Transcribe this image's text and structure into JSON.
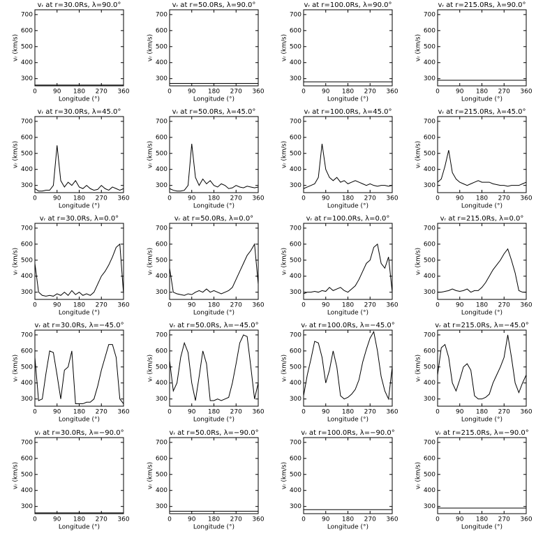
{
  "chart_data": [
    {
      "type": "line",
      "title": "vᵣ at r=30.0Rs, λ=90.0°",
      "xlabel": "Longitude (°)",
      "ylabel": "vᵣ (km/s)",
      "x": [
        0,
        360
      ],
      "values": [
        260,
        260
      ],
      "xlim": [
        0,
        360
      ],
      "ylim": [
        255,
        730
      ],
      "xticks": [
        0,
        90,
        180,
        270,
        360
      ],
      "yticks": [
        300,
        400,
        500,
        600,
        700
      ],
      "color": "#000000"
    },
    {
      "type": "line",
      "title": "vᵣ at r=50.0Rs, λ=90.0°",
      "xlabel": "Longitude (°)",
      "ylabel": "vᵣ (km/s)",
      "x": [
        0,
        360
      ],
      "values": [
        270,
        270
      ],
      "xlim": [
        0,
        360
      ],
      "ylim": [
        255,
        730
      ],
      "xticks": [
        0,
        90,
        180,
        270,
        360
      ],
      "yticks": [
        300,
        400,
        500,
        600,
        700
      ],
      "color": "#000000"
    },
    {
      "type": "line",
      "title": "vᵣ at r=100.0Rs, λ=90.0°",
      "xlabel": "Longitude (°)",
      "ylabel": "vᵣ (km/s)",
      "x": [
        0,
        360
      ],
      "values": [
        280,
        280
      ],
      "xlim": [
        0,
        360
      ],
      "ylim": [
        255,
        730
      ],
      "xticks": [
        0,
        90,
        180,
        270,
        360
      ],
      "yticks": [
        300,
        400,
        500,
        600,
        700
      ],
      "color": "#000000"
    },
    {
      "type": "line",
      "title": "vᵣ at r=215.0Rs, λ=90.0°",
      "xlabel": "Longitude (°)",
      "ylabel": "vᵣ (km/s)",
      "x": [
        0,
        360
      ],
      "values": [
        290,
        290
      ],
      "xlim": [
        0,
        360
      ],
      "ylim": [
        255,
        730
      ],
      "xticks": [
        0,
        90,
        180,
        270,
        360
      ],
      "yticks": [
        300,
        400,
        500,
        600,
        700
      ],
      "color": "#000000"
    },
    {
      "type": "line",
      "title": "vᵣ at r=30.0Rs, λ=45.0°",
      "xlabel": "Longitude (°)",
      "ylabel": "vᵣ (km/s)",
      "x": [
        0,
        15,
        30,
        45,
        60,
        75,
        90,
        105,
        120,
        135,
        150,
        165,
        180,
        195,
        210,
        225,
        240,
        255,
        270,
        285,
        300,
        315,
        330,
        345,
        360
      ],
      "values": [
        280,
        265,
        265,
        270,
        270,
        300,
        550,
        330,
        290,
        320,
        300,
        330,
        290,
        280,
        300,
        280,
        270,
        275,
        300,
        280,
        270,
        290,
        280,
        270,
        280
      ],
      "xlim": [
        0,
        360
      ],
      "ylim": [
        255,
        730
      ],
      "xticks": [
        0,
        90,
        180,
        270,
        360
      ],
      "yticks": [
        300,
        400,
        500,
        600,
        700
      ],
      "color": "#000000"
    },
    {
      "type": "line",
      "title": "vᵣ at r=50.0Rs, λ=45.0°",
      "xlabel": "Longitude (°)",
      "ylabel": "vᵣ (km/s)",
      "x": [
        0,
        15,
        30,
        45,
        60,
        75,
        90,
        105,
        120,
        135,
        150,
        165,
        180,
        195,
        210,
        225,
        240,
        255,
        270,
        285,
        300,
        315,
        330,
        345,
        360
      ],
      "values": [
        280,
        270,
        265,
        265,
        270,
        300,
        560,
        350,
        300,
        340,
        310,
        330,
        300,
        290,
        310,
        300,
        280,
        285,
        300,
        290,
        285,
        295,
        290,
        285,
        290
      ],
      "xlim": [
        0,
        360
      ],
      "ylim": [
        255,
        730
      ],
      "xticks": [
        0,
        90,
        180,
        270,
        360
      ],
      "yticks": [
        300,
        400,
        500,
        600,
        700
      ],
      "color": "#000000"
    },
    {
      "type": "line",
      "title": "vᵣ at r=100.0Rs, λ=45.0°",
      "xlabel": "Longitude (°)",
      "ylabel": "vᵣ (km/s)",
      "x": [
        0,
        15,
        30,
        45,
        60,
        75,
        90,
        105,
        120,
        135,
        150,
        165,
        180,
        195,
        210,
        225,
        240,
        255,
        270,
        285,
        300,
        315,
        330,
        345,
        360
      ],
      "values": [
        280,
        290,
        300,
        310,
        350,
        560,
        400,
        350,
        330,
        350,
        320,
        330,
        310,
        320,
        330,
        320,
        310,
        300,
        310,
        300,
        295,
        300,
        300,
        295,
        300
      ],
      "xlim": [
        0,
        360
      ],
      "ylim": [
        255,
        730
      ],
      "xticks": [
        0,
        90,
        180,
        270,
        360
      ],
      "yticks": [
        300,
        400,
        500,
        600,
        700
      ],
      "color": "#000000"
    },
    {
      "type": "line",
      "title": "vᵣ at r=215.0Rs, λ=45.0°",
      "xlabel": "Longitude (°)",
      "ylabel": "vᵣ (km/s)",
      "x": [
        0,
        15,
        30,
        45,
        60,
        75,
        90,
        105,
        120,
        135,
        150,
        165,
        180,
        195,
        210,
        225,
        240,
        255,
        270,
        285,
        300,
        315,
        330,
        345,
        360
      ],
      "values": [
        320,
        340,
        420,
        520,
        380,
        340,
        320,
        310,
        300,
        310,
        320,
        330,
        320,
        320,
        320,
        310,
        305,
        300,
        300,
        295,
        300,
        300,
        300,
        310,
        320
      ],
      "xlim": [
        0,
        360
      ],
      "ylim": [
        255,
        730
      ],
      "xticks": [
        0,
        90,
        180,
        270,
        360
      ],
      "yticks": [
        300,
        400,
        500,
        600,
        700
      ],
      "color": "#000000"
    },
    {
      "type": "line",
      "title": "vᵣ at r=30.0Rs, λ=0.0°",
      "xlabel": "Longitude (°)",
      "ylabel": "vᵣ (km/s)",
      "x": [
        0,
        15,
        30,
        45,
        60,
        75,
        90,
        105,
        120,
        135,
        150,
        165,
        180,
        195,
        210,
        225,
        240,
        255,
        270,
        285,
        300,
        315,
        330,
        345,
        360
      ],
      "values": [
        480,
        300,
        280,
        275,
        280,
        275,
        290,
        280,
        300,
        280,
        310,
        285,
        300,
        280,
        290,
        280,
        300,
        350,
        400,
        430,
        470,
        520,
        580,
        600,
        290
      ],
      "xlim": [
        0,
        360
      ],
      "ylim": [
        255,
        730
      ],
      "xticks": [
        0,
        90,
        180,
        270,
        360
      ],
      "yticks": [
        300,
        400,
        500,
        600,
        700
      ],
      "color": "#000000"
    },
    {
      "type": "line",
      "title": "vᵣ at r=50.0Rs, λ=0.0°",
      "xlabel": "Longitude (°)",
      "ylabel": "vᵣ (km/s)",
      "x": [
        0,
        15,
        30,
        45,
        60,
        75,
        90,
        105,
        120,
        135,
        150,
        165,
        180,
        195,
        210,
        225,
        240,
        255,
        270,
        285,
        300,
        315,
        330,
        345,
        360
      ],
      "values": [
        450,
        300,
        290,
        285,
        280,
        290,
        285,
        300,
        310,
        300,
        320,
        300,
        310,
        300,
        290,
        300,
        310,
        330,
        380,
        430,
        480,
        530,
        560,
        600,
        350
      ],
      "xlim": [
        0,
        360
      ],
      "ylim": [
        255,
        730
      ],
      "xticks": [
        0,
        90,
        180,
        270,
        360
      ],
      "yticks": [
        300,
        400,
        500,
        600,
        700
      ],
      "color": "#000000"
    },
    {
      "type": "line",
      "title": "vᵣ at r=100.0Rs, λ=0.0°",
      "xlabel": "Longitude (°)",
      "ylabel": "vᵣ (km/s)",
      "x": [
        0,
        15,
        30,
        45,
        60,
        75,
        90,
        105,
        120,
        135,
        150,
        165,
        180,
        195,
        210,
        225,
        240,
        255,
        270,
        285,
        300,
        315,
        330,
        345,
        360
      ],
      "values": [
        290,
        300,
        300,
        305,
        300,
        310,
        305,
        330,
        310,
        320,
        330,
        310,
        300,
        320,
        340,
        380,
        430,
        480,
        500,
        580,
        600,
        480,
        450,
        520,
        300
      ],
      "xlim": [
        0,
        360
      ],
      "ylim": [
        255,
        730
      ],
      "xticks": [
        0,
        90,
        180,
        270,
        360
      ],
      "yticks": [
        300,
        400,
        500,
        600,
        700
      ],
      "color": "#000000"
    },
    {
      "type": "line",
      "title": "vᵣ at r=215.0Rs, λ=0.0°",
      "xlabel": "Longitude (°)",
      "ylabel": "vᵣ (km/s)",
      "x": [
        0,
        15,
        30,
        45,
        60,
        75,
        90,
        105,
        120,
        135,
        150,
        165,
        180,
        195,
        210,
        225,
        240,
        255,
        270,
        285,
        300,
        315,
        330,
        345,
        360
      ],
      "values": [
        300,
        300,
        305,
        310,
        320,
        310,
        305,
        310,
        320,
        300,
        310,
        310,
        330,
        360,
        400,
        440,
        470,
        500,
        540,
        570,
        500,
        420,
        310,
        300,
        300
      ],
      "xlim": [
        0,
        360
      ],
      "ylim": [
        255,
        730
      ],
      "xticks": [
        0,
        90,
        180,
        270,
        360
      ],
      "yticks": [
        300,
        400,
        500,
        600,
        700
      ],
      "color": "#000000"
    },
    {
      "type": "line",
      "title": "vᵣ at r=30.0Rs, λ=−45.0°",
      "xlabel": "Longitude (°)",
      "ylabel": "vᵣ (km/s)",
      "x": [
        0,
        15,
        30,
        45,
        60,
        75,
        90,
        105,
        120,
        135,
        150,
        165,
        180,
        195,
        210,
        225,
        240,
        255,
        270,
        285,
        300,
        315,
        330,
        345,
        360
      ],
      "values": [
        560,
        290,
        300,
        460,
        600,
        590,
        450,
        300,
        480,
        500,
        600,
        270,
        270,
        270,
        280,
        280,
        300,
        380,
        480,
        560,
        640,
        640,
        560,
        300,
        270
      ],
      "xlim": [
        0,
        360
      ],
      "ylim": [
        255,
        730
      ],
      "xticks": [
        0,
        90,
        180,
        270,
        360
      ],
      "yticks": [
        300,
        400,
        500,
        600,
        700
      ],
      "color": "#000000"
    },
    {
      "type": "line",
      "title": "vᵣ at r=50.0Rs, λ=−45.0°",
      "xlabel": "Longitude (°)",
      "ylabel": "vᵣ (km/s)",
      "x": [
        0,
        15,
        30,
        45,
        60,
        75,
        90,
        105,
        120,
        135,
        150,
        165,
        180,
        195,
        210,
        225,
        240,
        255,
        270,
        285,
        300,
        315,
        330,
        345,
        360
      ],
      "values": [
        540,
        350,
        400,
        560,
        650,
        590,
        400,
        290,
        440,
        600,
        520,
        290,
        290,
        300,
        290,
        300,
        310,
        400,
        520,
        650,
        700,
        690,
        500,
        300,
        400
      ],
      "xlim": [
        0,
        360
      ],
      "ylim": [
        255,
        730
      ],
      "xticks": [
        0,
        90,
        180,
        270,
        360
      ],
      "yticks": [
        300,
        400,
        500,
        600,
        700
      ],
      "color": "#000000"
    },
    {
      "type": "line",
      "title": "vᵣ at r=100.0Rs, λ=−45.0°",
      "xlabel": "Longitude (°)",
      "ylabel": "vᵣ (km/s)",
      "x": [
        0,
        15,
        30,
        45,
        60,
        75,
        90,
        105,
        120,
        135,
        150,
        165,
        180,
        195,
        210,
        225,
        240,
        255,
        270,
        285,
        300,
        315,
        330,
        345,
        360
      ],
      "values": [
        320,
        450,
        550,
        660,
        650,
        560,
        400,
        480,
        600,
        500,
        320,
        300,
        310,
        330,
        360,
        420,
        530,
        610,
        680,
        720,
        600,
        440,
        350,
        300,
        500
      ],
      "xlim": [
        0,
        360
      ],
      "ylim": [
        255,
        730
      ],
      "xticks": [
        0,
        90,
        180,
        270,
        360
      ],
      "yticks": [
        300,
        400,
        500,
        600,
        700
      ],
      "color": "#000000"
    },
    {
      "type": "line",
      "title": "vᵣ at r=215.0Rs, λ=−45.0°",
      "xlabel": "Longitude (°)",
      "ylabel": "vᵣ (km/s)",
      "x": [
        0,
        15,
        30,
        45,
        60,
        75,
        90,
        105,
        120,
        135,
        150,
        165,
        180,
        195,
        210,
        225,
        240,
        255,
        270,
        285,
        300,
        315,
        330,
        345,
        360
      ],
      "values": [
        450,
        620,
        640,
        560,
        400,
        350,
        420,
        500,
        520,
        480,
        320,
        300,
        300,
        310,
        330,
        400,
        450,
        500,
        560,
        700,
        560,
        400,
        340,
        400,
        450
      ],
      "xlim": [
        0,
        360
      ],
      "ylim": [
        255,
        730
      ],
      "xticks": [
        0,
        90,
        180,
        270,
        360
      ],
      "yticks": [
        300,
        400,
        500,
        600,
        700
      ],
      "color": "#000000"
    },
    {
      "type": "line",
      "title": "vᵣ at r=30.0Rs, λ=−90.0°",
      "xlabel": "Longitude (°)",
      "ylabel": "vᵣ (km/s)",
      "x": [
        0,
        360
      ],
      "values": [
        260,
        260
      ],
      "xlim": [
        0,
        360
      ],
      "ylim": [
        255,
        730
      ],
      "xticks": [
        0,
        90,
        180,
        270,
        360
      ],
      "yticks": [
        300,
        400,
        500,
        600,
        700
      ],
      "color": "#000000"
    },
    {
      "type": "line",
      "title": "vᵣ at r=50.0Rs, λ=−90.0°",
      "xlabel": "Longitude (°)",
      "ylabel": "vᵣ (km/s)",
      "x": [
        0,
        360
      ],
      "values": [
        270,
        270
      ],
      "xlim": [
        0,
        360
      ],
      "ylim": [
        255,
        730
      ],
      "xticks": [
        0,
        90,
        180,
        270,
        360
      ],
      "yticks": [
        300,
        400,
        500,
        600,
        700
      ],
      "color": "#000000"
    },
    {
      "type": "line",
      "title": "vᵣ at r=100.0Rs, λ=−90.0°",
      "xlabel": "Longitude (°)",
      "ylabel": "vᵣ (km/s)",
      "x": [
        0,
        360
      ],
      "values": [
        280,
        280
      ],
      "xlim": [
        0,
        360
      ],
      "ylim": [
        255,
        730
      ],
      "xticks": [
        0,
        90,
        180,
        270,
        360
      ],
      "yticks": [
        300,
        400,
        500,
        600,
        700
      ],
      "color": "#000000"
    },
    {
      "type": "line",
      "title": "vᵣ at r=215.0Rs, λ=−90.0°",
      "xlabel": "Longitude (°)",
      "ylabel": "vᵣ (km/s)",
      "x": [
        0,
        360
      ],
      "values": [
        290,
        290
      ],
      "xlim": [
        0,
        360
      ],
      "ylim": [
        255,
        730
      ],
      "xticks": [
        0,
        90,
        180,
        270,
        360
      ],
      "yticks": [
        300,
        400,
        500,
        600,
        700
      ],
      "color": "#000000"
    }
  ]
}
